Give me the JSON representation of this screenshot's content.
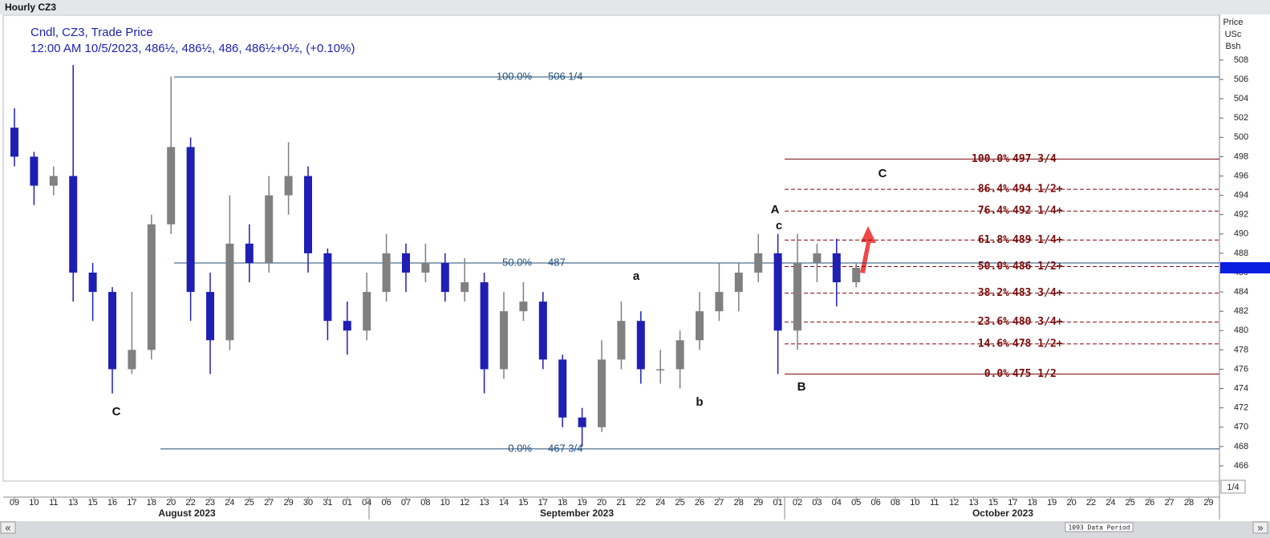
{
  "chart_data": {
    "type": "candlestick",
    "title": "Hourly CZ3",
    "legend_lines": [
      "Cndl, CZ3, Trade Price",
      "12:00 AM 10/5/2023, 486½, 486½, 486, 486½+0½, (+0.10%)"
    ],
    "y_axis_title": [
      "Price",
      "USc",
      "Bsh"
    ],
    "scale_label": "1/4",
    "footer": "1093 Data Period",
    "categories": [
      "09",
      "10",
      "11",
      "13",
      "15",
      "16",
      "17",
      "18",
      "20",
      "22",
      "23",
      "24",
      "25",
      "27",
      "29",
      "30",
      "31",
      "01",
      "04",
      "06",
      "07",
      "08",
      "10",
      "12",
      "13",
      "14",
      "15",
      "17",
      "18",
      "19",
      "20",
      "21",
      "22",
      "24",
      "25",
      "26",
      "27",
      "28",
      "29",
      "01",
      "02",
      "03",
      "04",
      "05",
      "06",
      "08",
      "10",
      "11",
      "12",
      "13",
      "15",
      "17",
      "18",
      "19",
      "20",
      "22",
      "24",
      "25",
      "26",
      "27",
      "28",
      "29"
    ],
    "months": [
      "August 2023",
      "September 2023",
      "October 2023"
    ],
    "open": [
      501,
      498,
      495,
      496,
      486,
      484,
      476,
      478,
      491,
      499,
      484,
      479,
      489,
      487,
      494,
      496,
      488,
      481,
      480,
      484,
      488,
      486,
      487,
      484,
      485,
      476,
      482,
      483,
      477,
      471,
      470,
      477,
      481,
      476,
      476,
      479,
      482,
      484,
      486,
      488,
      480,
      487,
      488,
      485,
      null,
      null,
      null,
      null,
      null,
      null,
      null,
      null,
      null,
      null,
      null,
      null,
      null,
      null,
      null,
      null,
      null,
      null
    ],
    "high": [
      503,
      498.5,
      497,
      507.5,
      487,
      484.5,
      484,
      492,
      506.3,
      500,
      486,
      494,
      491,
      496,
      499.5,
      497,
      488.5,
      483,
      486,
      490,
      489,
      489,
      488,
      487.5,
      486,
      484,
      485,
      484,
      477.5,
      472,
      479,
      483,
      482,
      478,
      480,
      484,
      487,
      487,
      490,
      490,
      490,
      489,
      489.5,
      487,
      null,
      null,
      null,
      null,
      null,
      null,
      null,
      null,
      null,
      null,
      null,
      null,
      null,
      null,
      null,
      null,
      null,
      null
    ],
    "low": [
      497,
      493,
      494,
      483,
      481,
      473.5,
      475.5,
      477,
      490,
      481,
      475.5,
      478,
      485,
      486,
      492,
      486,
      479,
      477.5,
      479,
      483,
      484,
      485,
      483,
      483,
      473.5,
      475,
      481,
      476,
      470,
      468,
      469.5,
      476,
      474.5,
      474.5,
      474,
      478,
      481,
      482,
      485,
      475.5,
      478,
      485,
      482.5,
      484.5,
      null,
      null,
      null,
      null,
      null,
      null,
      null,
      null,
      null,
      null,
      null,
      null,
      null,
      null,
      null,
      null,
      null,
      null
    ],
    "close": [
      498,
      495,
      496,
      486,
      484,
      476,
      478,
      491,
      499,
      484,
      479,
      489,
      487,
      494,
      496,
      488,
      481,
      480,
      484,
      488,
      486,
      487,
      484,
      485,
      476,
      482,
      483,
      477,
      471,
      470,
      477,
      481,
      476,
      476,
      479,
      482,
      484,
      486,
      488,
      480,
      487,
      488,
      485,
      486.5,
      null,
      null,
      null,
      null,
      null,
      null,
      null,
      null,
      null,
      null,
      null,
      null,
      null,
      null,
      null,
      null,
      null,
      null
    ],
    "up_color": "#808080",
    "down_color": "#1f1fb4",
    "ylim": [
      464.42,
      512.56
    ],
    "yticks": [
      466,
      468,
      470,
      472,
      474,
      476,
      478,
      480,
      482,
      484,
      486,
      488,
      490,
      492,
      494,
      496,
      498,
      500,
      502,
      504,
      506,
      508
    ],
    "fib_sets": [
      {
        "color": "#1f4e79",
        "levels": [
          {
            "pct": "100.0%",
            "value": 506.25,
            "label": "506 1/4",
            "style": "solid"
          },
          {
            "pct": "50.0%",
            "value": 487,
            "label": "487",
            "style": "solid"
          },
          {
            "pct": "0.0%",
            "value": 467.75,
            "label": "467 3/4",
            "style": "solid"
          }
        ]
      },
      {
        "color": "#7a0a0a",
        "levels": [
          {
            "pct": "100.0%",
            "value": 497.75,
            "label": "497 3/4",
            "style": "solid"
          },
          {
            "pct": "86.4%",
            "value": 494.625,
            "label": "494 1/2+",
            "style": "dashed"
          },
          {
            "pct": "76.4%",
            "value": 492.375,
            "label": "492 1/4+",
            "style": "dashed"
          },
          {
            "pct": "61.8%",
            "value": 489.375,
            "label": "489 1/4+",
            "style": "dashed"
          },
          {
            "pct": "50.0%",
            "value": 486.625,
            "label": "486 1/2+",
            "style": "dashed"
          },
          {
            "pct": "38.2%",
            "value": 483.875,
            "label": "483 3/4+",
            "style": "dashed"
          },
          {
            "pct": "23.6%",
            "value": 480.875,
            "label": "480 3/4+",
            "style": "dashed"
          },
          {
            "pct": "14.6%",
            "value": 478.625,
            "label": "478 1/2+",
            "style": "dashed"
          },
          {
            "pct": "0.0%",
            "value": 475.5,
            "label": "475 1/2",
            "style": "solid"
          }
        ]
      }
    ],
    "wave_labels": [
      "C",
      "C",
      "A",
      "c",
      "a",
      "b",
      "B"
    ]
  }
}
